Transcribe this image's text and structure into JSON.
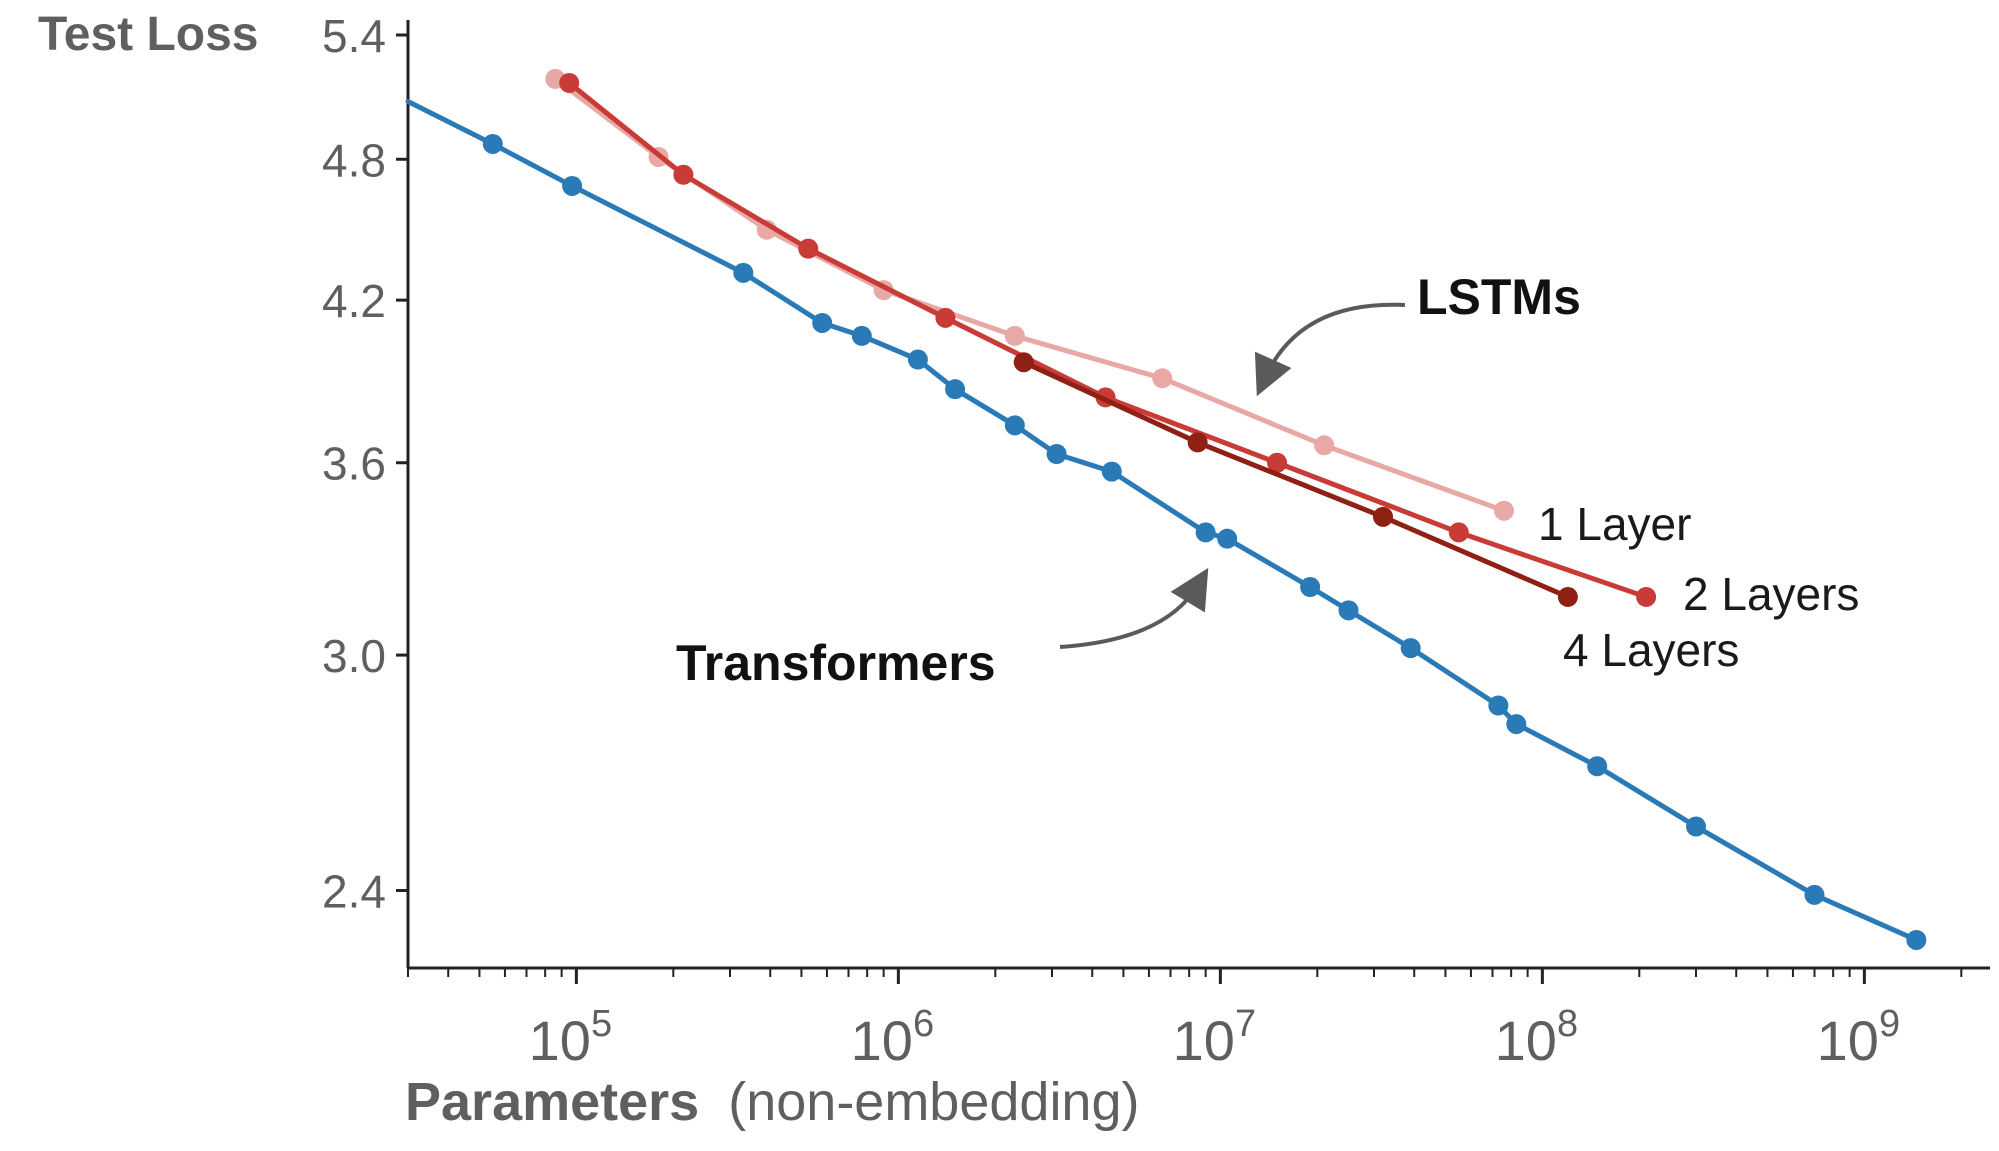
{
  "chart_data": {
    "type": "line",
    "xscale": "log",
    "yscale": "log",
    "xlim": [
      30000,
      3000000000
    ],
    "ylim": [
      2.23,
      5.4
    ],
    "grid": false,
    "ylabel": "Test Loss",
    "xlabel": {
      "main": "Parameters",
      "sub": "(non-embedding)"
    },
    "y_ticks": [
      {
        "value": 2.4,
        "label": "2.4"
      },
      {
        "value": 3.0,
        "label": "3.0"
      },
      {
        "value": 3.6,
        "label": "3.6"
      },
      {
        "value": 4.2,
        "label": "4.2"
      },
      {
        "value": 4.8,
        "label": "4.8"
      },
      {
        "value": 5.4,
        "label": "5.4"
      }
    ],
    "x_ticks": [
      {
        "value": 100000,
        "base": "10",
        "exp": "5"
      },
      {
        "value": 1000000,
        "base": "10",
        "exp": "6"
      },
      {
        "value": 10000000,
        "base": "10",
        "exp": "7"
      },
      {
        "value": 100000000,
        "base": "10",
        "exp": "8"
      },
      {
        "value": 1000000000,
        "base": "10",
        "exp": "9"
      }
    ],
    "series": [
      {
        "name": "1 Layer",
        "color": "#e8a8a6",
        "x": [
          86000,
          180000,
          390000,
          900000,
          2300000,
          6600000,
          21000000,
          76000000
        ],
        "y": [
          5.18,
          4.81,
          4.49,
          4.24,
          4.06,
          3.9,
          3.66,
          3.44
        ]
      },
      {
        "name": "2 Layers",
        "color": "#c83b37",
        "x": [
          95000,
          215000,
          525000,
          1400000,
          4400000,
          15000000,
          55000000,
          210000000
        ],
        "y": [
          5.16,
          4.73,
          4.41,
          4.13,
          3.83,
          3.6,
          3.37,
          3.17
        ]
      },
      {
        "name": "4 Layers",
        "color": "#8e2014",
        "x": [
          2450000,
          8500000,
          32000000,
          120000000
        ],
        "y": [
          3.96,
          3.67,
          3.42,
          3.17
        ]
      },
      {
        "name": "Transformers",
        "color": "#2a7ab8",
        "x": [
          30000,
          55000,
          97000,
          330000,
          580000,
          770000,
          1150000,
          1500000,
          2300000,
          3100000,
          4600000,
          9000000,
          10500000,
          19000000,
          25000000,
          39000000,
          73000000,
          83000000,
          148000000,
          300000000,
          700000000,
          1450000000
        ],
        "y": [
          5.07,
          4.87,
          4.68,
          4.31,
          4.11,
          4.06,
          3.97,
          3.86,
          3.73,
          3.63,
          3.57,
          3.37,
          3.35,
          3.2,
          3.13,
          3.02,
          2.86,
          2.81,
          2.7,
          2.55,
          2.39,
          2.29
        ]
      }
    ],
    "annotations": [
      {
        "text": "LSTMs",
        "bold": true
      },
      {
        "text": "Transformers",
        "bold": true
      }
    ]
  }
}
